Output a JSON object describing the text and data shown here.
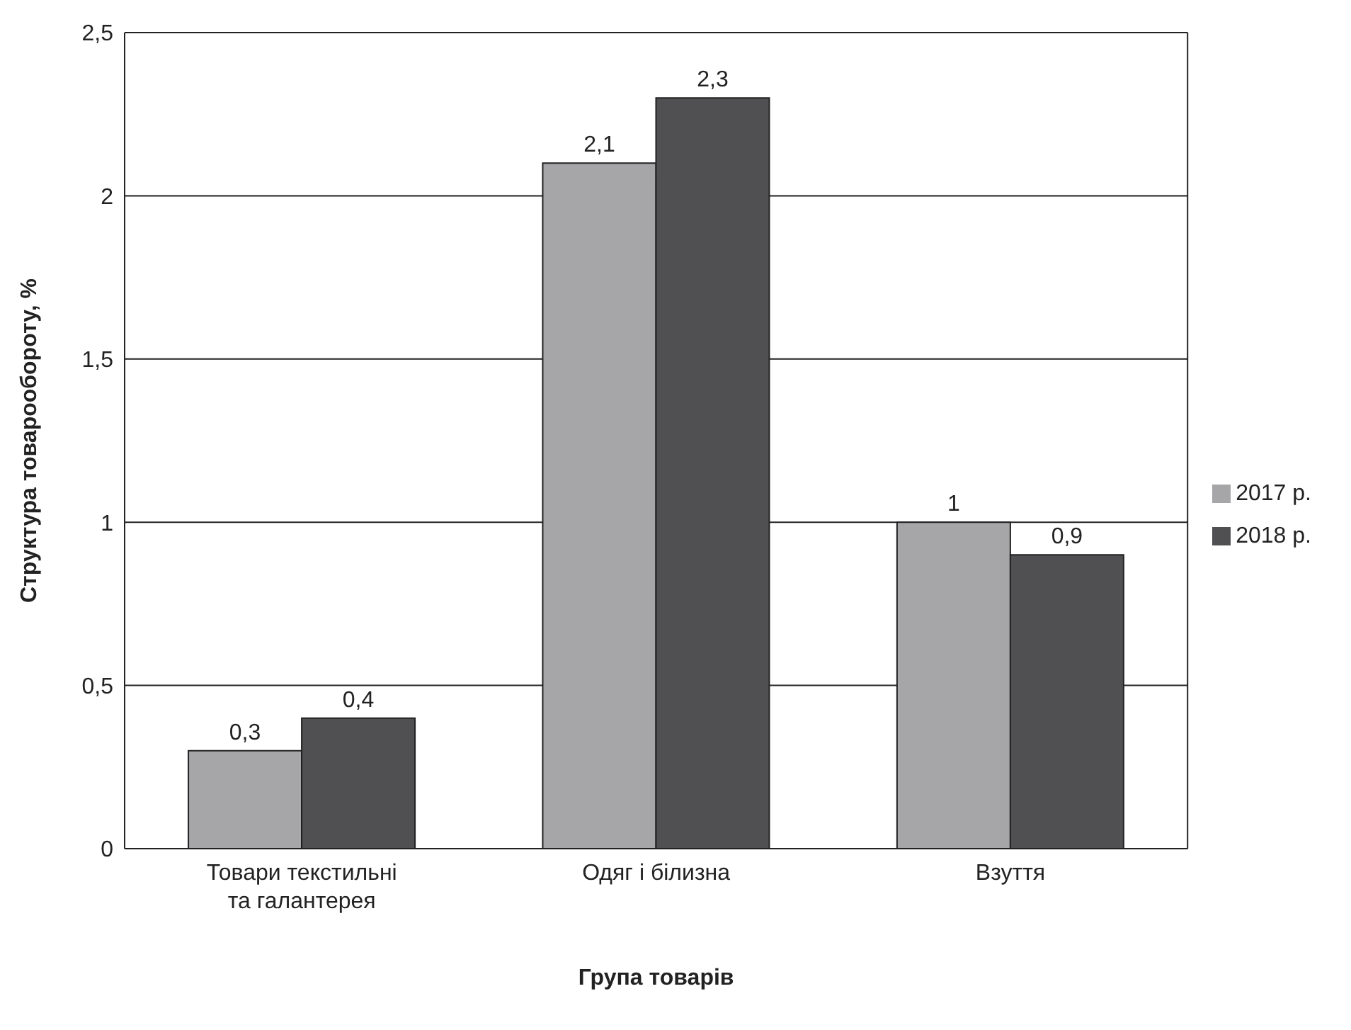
{
  "chart_data": {
    "type": "bar",
    "xlabel": "Група товарів",
    "ylabel": "Структура товарообороту, %",
    "categories": [
      "Товари текстильні та галантерея",
      "Одяг і білизна",
      "Взуття"
    ],
    "series": [
      {
        "name": "2017 р.",
        "color": "#a6a6a8",
        "values": [
          0.3,
          2.1,
          1
        ],
        "value_labels": [
          "0,3",
          "2,1",
          "1"
        ]
      },
      {
        "name": "2018 р.",
        "color": "#505052",
        "values": [
          0.4,
          2.3,
          0.9
        ],
        "value_labels": [
          "0,4",
          "2,3",
          "0,9"
        ]
      }
    ],
    "ylim": [
      0,
      2.5
    ],
    "yticks": [
      0,
      {
        "value": 0.5,
        "label": "0,5"
      },
      1,
      {
        "value": 1.5,
        "label": "1,5"
      },
      2,
      {
        "value": 2.5,
        "label": "2,5"
      }
    ],
    "grid": "y",
    "legend": "right"
  }
}
